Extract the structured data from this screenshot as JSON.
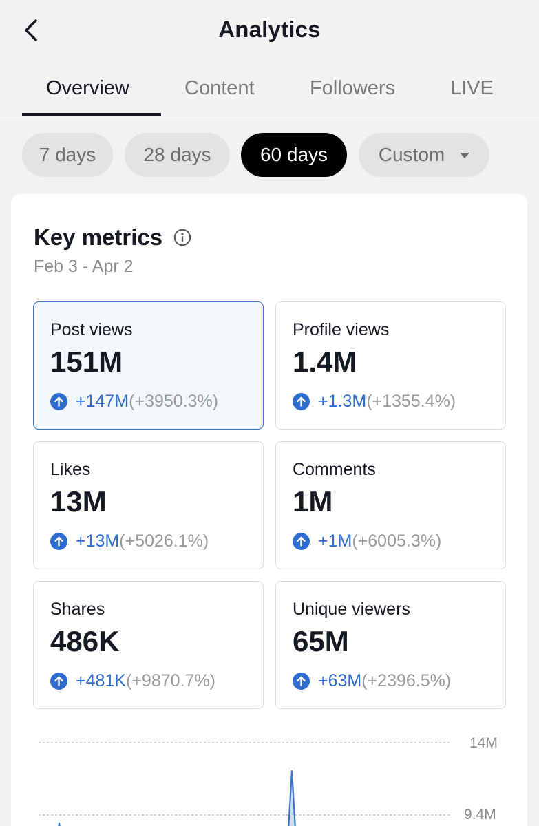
{
  "header": {
    "title": "Analytics"
  },
  "tabs": [
    {
      "label": "Overview",
      "active": true
    },
    {
      "label": "Content",
      "active": false
    },
    {
      "label": "Followers",
      "active": false
    },
    {
      "label": "LIVE",
      "active": false
    }
  ],
  "ranges": [
    {
      "label": "7 days",
      "selected": false
    },
    {
      "label": "28 days",
      "selected": false
    },
    {
      "label": "60 days",
      "selected": true
    },
    {
      "label": "Custom",
      "selected": false
    }
  ],
  "key_metrics": {
    "title": "Key metrics",
    "date_range": "Feb 3 - Apr 2",
    "items": [
      {
        "label": "Post views",
        "value": "151M",
        "delta": "+147M",
        "pct": "(+3950.3%)",
        "active": true
      },
      {
        "label": "Profile views",
        "value": "1.4M",
        "delta": "+1.3M",
        "pct": "(+1355.4%)",
        "active": false
      },
      {
        "label": "Likes",
        "value": "13M",
        "delta": "+13M",
        "pct": "(+5026.1%)",
        "active": false
      },
      {
        "label": "Comments",
        "value": "1M",
        "delta": "+1M",
        "pct": "(+6005.3%)",
        "active": false
      },
      {
        "label": "Shares",
        "value": "486K",
        "delta": "+481K",
        "pct": "(+9870.7%)",
        "active": false
      },
      {
        "label": "Unique viewers",
        "value": "65M",
        "delta": "+63M",
        "pct": "(+2396.5%)",
        "active": false
      }
    ]
  },
  "chart": {
    "y_ticks": [
      "14M",
      "9.4M"
    ],
    "colors": {
      "line": "#3a74c5",
      "fill": "#cfe0f5",
      "grid": "#bdbdbd"
    }
  },
  "colors": {
    "accent": "#2f6ccf",
    "text": "#161823",
    "muted": "#8a8a8a"
  }
}
